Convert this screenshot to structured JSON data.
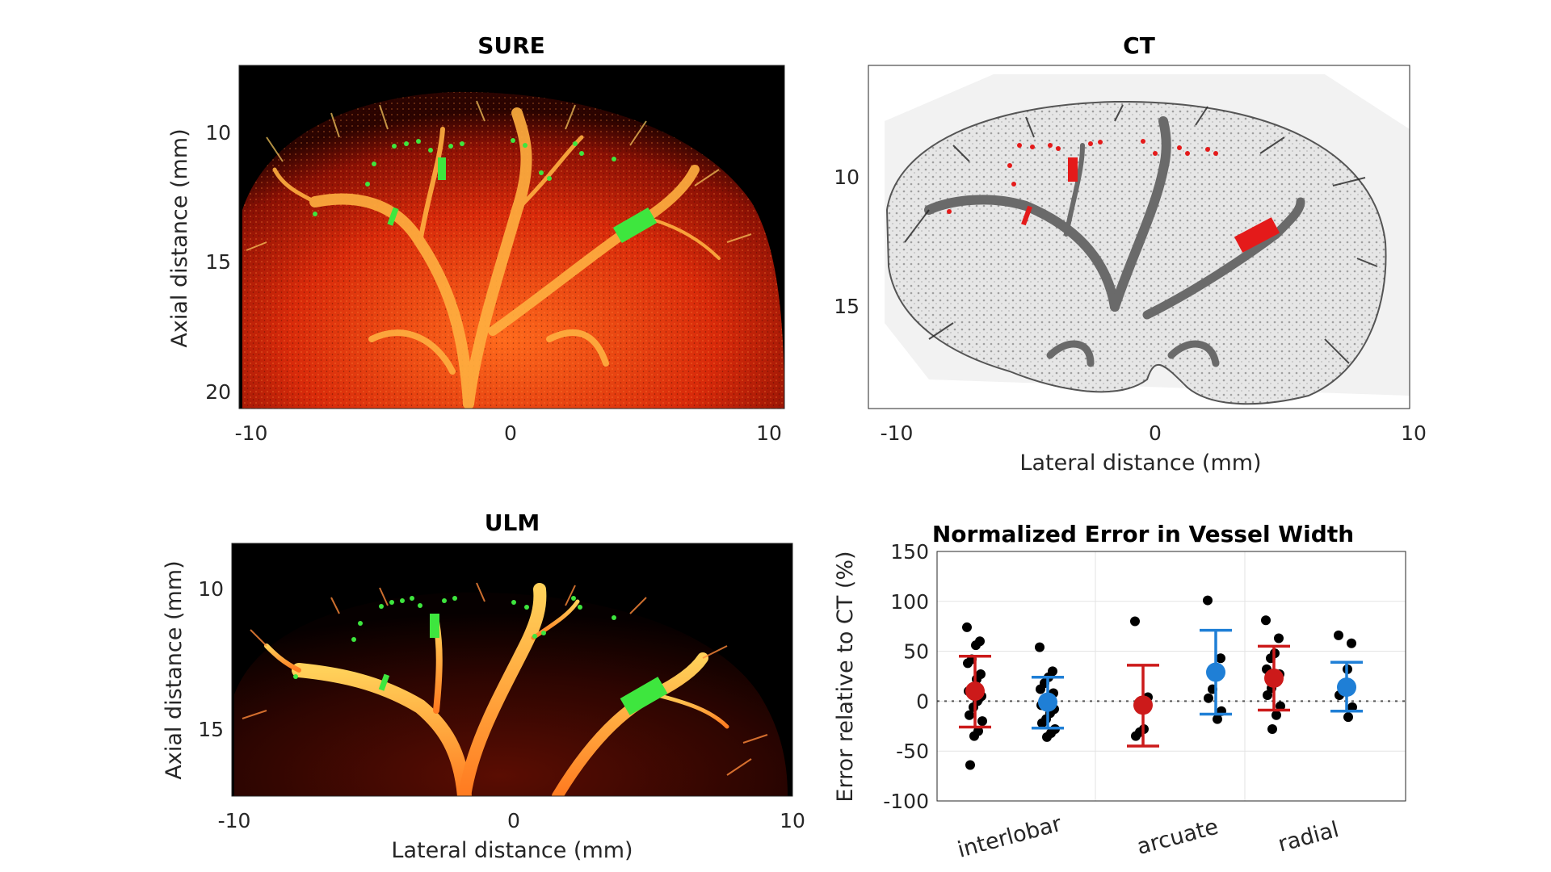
{
  "figure": {
    "panels": [
      {
        "title": "SURE",
        "xlabel": "",
        "ylabel": "Axial distance (mm)",
        "xticks": [
          "-10",
          "0",
          "10"
        ],
        "yticks": [
          "10",
          "15",
          "20"
        ],
        "image": "kidney microvasculature map, red/yellow hot colormap on black, green vessel-width markers"
      },
      {
        "title": "CT",
        "xlabel": "Lateral distance (mm)",
        "ylabel": "",
        "xticks": [
          "-10",
          "0",
          "10"
        ],
        "yticks": [
          "10",
          "15"
        ],
        "image": "grayscale kidney vasculature on light background, red vessel-width markers"
      },
      {
        "title": "ULM",
        "xlabel": "Lateral distance (mm)",
        "ylabel": "Axial distance (mm)",
        "xticks": [
          "-10",
          "0",
          "10"
        ],
        "yticks": [
          "10",
          "15"
        ],
        "image": "kidney microvasculature map, red/yellow hot colormap on black, green vessel-width markers"
      }
    ],
    "colors": {
      "sure_red": "#cc1a1a",
      "ulm_blue": "#1f7fd6",
      "marker_green": "#3ee63e",
      "ct_marker_red": "#e41a1a"
    }
  },
  "chart_data": {
    "type": "scatter",
    "title": "Normalized Error in Vessel Width",
    "ylabel": "Error relative to CT (%)",
    "xlabel": "",
    "ylim": [
      -100,
      150
    ],
    "yticks": [
      -100,
      -50,
      0,
      50,
      100,
      150
    ],
    "grid": true,
    "reference_line": 0,
    "categories": [
      "interlobar",
      "arcuate",
      "radial"
    ],
    "series": [
      {
        "color": "#cc1a1a",
        "mean": [
          10,
          -4,
          23
        ],
        "ci_low": [
          -26,
          -45,
          -9
        ],
        "ci_high": [
          45,
          36,
          55
        ],
        "points": [
          [
            74,
            60,
            56,
            42,
            38,
            27,
            22,
            14,
            10,
            5,
            0,
            -6,
            -14,
            -20,
            -30,
            -35,
            -64
          ],
          [
            80,
            4,
            -28,
            -31,
            -35
          ],
          [
            81,
            63,
            48,
            43,
            32,
            27,
            20,
            13,
            6,
            -5,
            -14,
            -28
          ]
        ]
      },
      {
        "color": "#1f7fd6",
        "mean": [
          -1,
          29,
          14
        ],
        "ci_low": [
          -27,
          -13,
          -10
        ],
        "ci_high": [
          24,
          71,
          39
        ],
        "points": [
          [
            54,
            30,
            24,
            18,
            12,
            8,
            4,
            0,
            -4,
            -8,
            -12,
            -18,
            -22,
            -28,
            -32,
            -36
          ],
          [
            101,
            43,
            30,
            12,
            3,
            -10,
            -18
          ],
          [
            66,
            58,
            32,
            14,
            6,
            -6,
            -16
          ]
        ]
      }
    ]
  }
}
